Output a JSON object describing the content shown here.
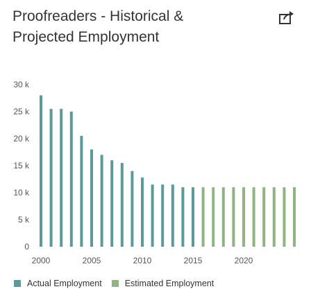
{
  "header": {
    "title_line1": "Proofreaders - Historical &",
    "title_line2": "Projected Employment",
    "share_icon": "share-arrow-icon"
  },
  "colors": {
    "actual": "#5b9a99",
    "estimated": "#8fb383",
    "tick_text": "#555555"
  },
  "chart_data": {
    "type": "bar",
    "title": "Proofreaders - Historical & Projected Employment",
    "xlabel": "",
    "ylabel": "",
    "ylim": [
      0,
      30000
    ],
    "y_ticks": [
      {
        "value": 0,
        "label": "0"
      },
      {
        "value": 5000,
        "label": "5 k"
      },
      {
        "value": 10000,
        "label": "10 k"
      },
      {
        "value": 15000,
        "label": "15 k"
      },
      {
        "value": 20000,
        "label": "20 k"
      },
      {
        "value": 25000,
        "label": "25 k"
      },
      {
        "value": 30000,
        "label": "30 k"
      }
    ],
    "x_ticks": [
      "2000",
      "2005",
      "2010",
      "2015",
      "2020"
    ],
    "categories": [
      2000,
      2001,
      2002,
      2003,
      2004,
      2005,
      2006,
      2007,
      2008,
      2009,
      2010,
      2011,
      2012,
      2013,
      2014,
      2015,
      2016,
      2017,
      2018,
      2019,
      2020,
      2021,
      2022,
      2023,
      2024,
      2025
    ],
    "series": [
      {
        "name": "Actual Employment",
        "x": [
          2000,
          2001,
          2002,
          2003,
          2004,
          2005,
          2006,
          2007,
          2008,
          2009,
          2010,
          2011,
          2012,
          2013,
          2014,
          2015
        ],
        "values": [
          28000,
          25500,
          25500,
          25000,
          20500,
          18000,
          17000,
          16000,
          15500,
          14000,
          12800,
          11500,
          11500,
          11500,
          11000,
          11000
        ]
      },
      {
        "name": "Estimated Employment",
        "x": [
          2016,
          2017,
          2018,
          2019,
          2020,
          2021,
          2022,
          2023,
          2024,
          2025
        ],
        "values": [
          11000,
          11000,
          11000,
          11000,
          11000,
          11000,
          11000,
          11000,
          11000,
          11000
        ]
      }
    ],
    "legend_position": "bottom-left",
    "grid": false
  },
  "legend": {
    "actual_label": "Actual Employment",
    "estimated_label": "Estimated Employment"
  }
}
